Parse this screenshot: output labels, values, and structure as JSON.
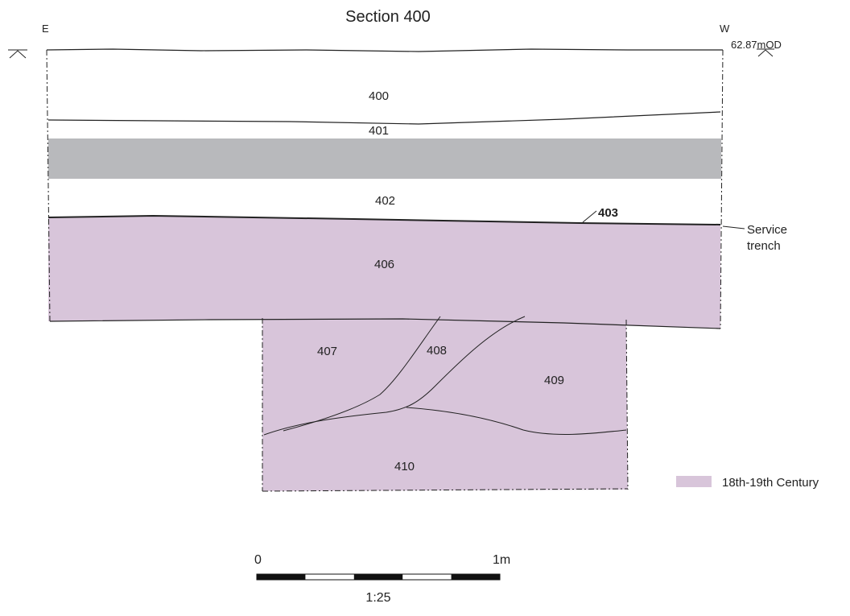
{
  "title": "Section 400",
  "orientation": {
    "left": "E",
    "right": "W"
  },
  "datum": {
    "level": "62.87mOD"
  },
  "layers": [
    {
      "id": "400",
      "label": "400"
    },
    {
      "id": "401",
      "label": "401"
    },
    {
      "id": "402",
      "label": "402"
    },
    {
      "id": "403",
      "label": "403"
    },
    {
      "id": "406",
      "label": "406"
    },
    {
      "id": "407",
      "label": "407"
    },
    {
      "id": "408",
      "label": "408"
    },
    {
      "id": "409",
      "label": "409"
    },
    {
      "id": "410",
      "label": "410"
    }
  ],
  "annotation": {
    "line1": "Service",
    "line2": "trench"
  },
  "legend": {
    "label": "18th-19th Century",
    "color": "#d8c5da"
  },
  "colors": {
    "period_fill": "#d8c5da",
    "grey_band": "#b8b9bc"
  },
  "scale_bar": {
    "start": "0",
    "end": "1m",
    "ratio": "1:25"
  }
}
